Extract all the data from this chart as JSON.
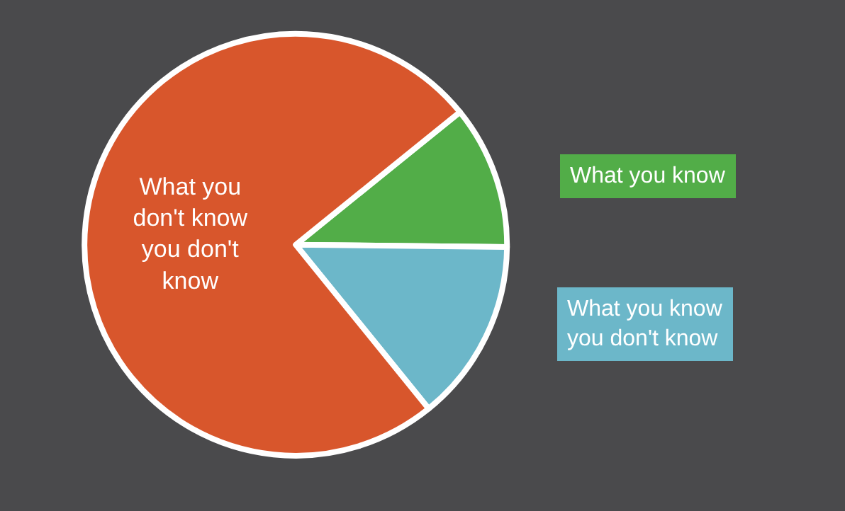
{
  "chart_data": {
    "type": "pie",
    "categories": [
      "What you know",
      "What you know\nyou don't know",
      "What you\ndon't know\nyou don't\nknow"
    ],
    "values": [
      11,
      14,
      75
    ],
    "colors": [
      "#52ad48",
      "#6cb7c9",
      "#d8562c"
    ],
    "legend": false
  }
}
